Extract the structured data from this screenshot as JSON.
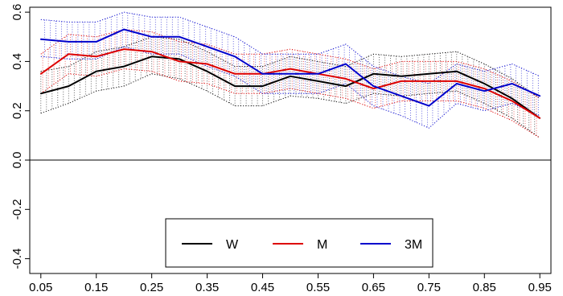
{
  "chart_data": {
    "type": "line",
    "title": "",
    "xlabel": "",
    "ylabel": "",
    "x": [
      0.05,
      0.1,
      0.15,
      0.2,
      0.25,
      0.3,
      0.35,
      0.4,
      0.45,
      0.5,
      0.55,
      0.6,
      0.65,
      0.7,
      0.75,
      0.8,
      0.85,
      0.9,
      0.95
    ],
    "x_tick_labels": [
      "0.05",
      "0.15",
      "0.25",
      "0.35",
      "0.45",
      "0.55",
      "0.65",
      "0.75",
      "0.85",
      "0.95"
    ],
    "x_tick_values": [
      0.05,
      0.15,
      0.25,
      0.35,
      0.45,
      0.55,
      0.65,
      0.75,
      0.85,
      0.95
    ],
    "y_tick_labels": [
      "-0.4",
      "-0.2",
      "0.0",
      "0.2",
      "0.4",
      "0.6"
    ],
    "y_tick_values": [
      -0.4,
      -0.2,
      0.0,
      0.2,
      0.4,
      0.6
    ],
    "xlim": [
      0.03,
      0.97
    ],
    "ylim": [
      -0.46,
      0.62
    ],
    "grid": false,
    "reference_line": 0.0,
    "legend_position": "bottom-center",
    "bands_style": "dotted confidence bands with vertical hatching",
    "series": [
      {
        "name": "W",
        "color": "#000000",
        "values": [
          0.27,
          0.3,
          0.36,
          0.38,
          0.42,
          0.41,
          0.36,
          0.3,
          0.3,
          0.34,
          0.32,
          0.3,
          0.35,
          0.34,
          0.35,
          0.36,
          0.31,
          0.25,
          0.17
        ],
        "lower": [
          0.19,
          0.23,
          0.28,
          0.3,
          0.35,
          0.33,
          0.28,
          0.22,
          0.22,
          0.26,
          0.25,
          0.23,
          0.27,
          0.26,
          0.27,
          0.28,
          0.23,
          0.17,
          0.09
        ],
        "upper": [
          0.36,
          0.38,
          0.44,
          0.46,
          0.5,
          0.49,
          0.44,
          0.38,
          0.38,
          0.42,
          0.4,
          0.38,
          0.43,
          0.42,
          0.43,
          0.44,
          0.39,
          0.33,
          0.25
        ]
      },
      {
        "name": "M",
        "color": "#dd0000",
        "values": [
          0.35,
          0.43,
          0.42,
          0.45,
          0.44,
          0.4,
          0.39,
          0.35,
          0.35,
          0.37,
          0.35,
          0.33,
          0.29,
          0.32,
          0.32,
          0.32,
          0.29,
          0.24,
          0.17
        ],
        "lower": [
          0.27,
          0.35,
          0.34,
          0.37,
          0.36,
          0.32,
          0.31,
          0.27,
          0.27,
          0.29,
          0.27,
          0.25,
          0.21,
          0.24,
          0.24,
          0.24,
          0.21,
          0.16,
          0.09
        ],
        "upper": [
          0.43,
          0.51,
          0.5,
          0.53,
          0.52,
          0.48,
          0.47,
          0.43,
          0.43,
          0.45,
          0.43,
          0.41,
          0.37,
          0.4,
          0.4,
          0.4,
          0.37,
          0.32,
          0.25
        ]
      },
      {
        "name": "3M",
        "color": "#0000cc",
        "values": [
          0.49,
          0.48,
          0.48,
          0.53,
          0.5,
          0.5,
          0.46,
          0.42,
          0.35,
          0.35,
          0.35,
          0.39,
          0.3,
          0.26,
          0.22,
          0.31,
          0.28,
          0.31,
          0.26
        ],
        "lower": [
          0.42,
          0.41,
          0.41,
          0.46,
          0.43,
          0.43,
          0.38,
          0.34,
          0.27,
          0.27,
          0.27,
          0.31,
          0.22,
          0.18,
          0.13,
          0.23,
          0.2,
          0.23,
          0.18
        ],
        "upper": [
          0.57,
          0.56,
          0.56,
          0.6,
          0.58,
          0.58,
          0.54,
          0.5,
          0.43,
          0.43,
          0.43,
          0.47,
          0.38,
          0.34,
          0.31,
          0.39,
          0.36,
          0.39,
          0.34
        ]
      }
    ]
  }
}
